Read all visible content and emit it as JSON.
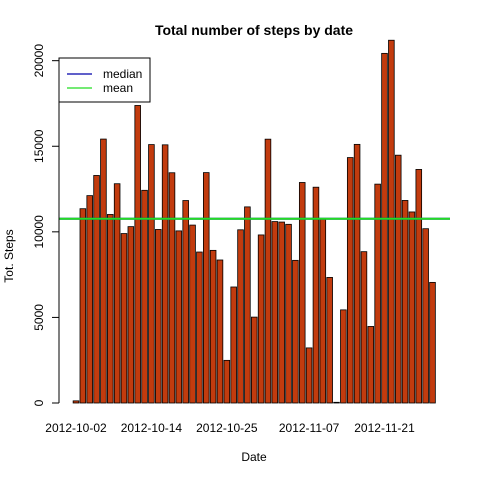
{
  "chart_data": {
    "type": "bar",
    "title": "Total number of steps by date",
    "xlabel": "Date",
    "ylabel": "Tot. Steps",
    "ylim": [
      0,
      21500
    ],
    "yticks": [
      0,
      5000,
      10000,
      15000,
      20000
    ],
    "xtick_labels": [
      "2012-10-02",
      "2012-10-14",
      "2012-10-25",
      "2012-11-07",
      "2012-11-21"
    ],
    "xtick_positions": [
      1,
      12,
      23,
      35,
      46
    ],
    "values": [
      126,
      11352,
      12116,
      13294,
      15420,
      11015,
      12811,
      9900,
      10304,
      17382,
      12426,
      15098,
      10139,
      15084,
      13452,
      10056,
      11829,
      10395,
      8821,
      13460,
      8918,
      8355,
      2492,
      6778,
      10119,
      11458,
      5018,
      9819,
      15414,
      10600,
      10571,
      10439,
      8334,
      12883,
      3219,
      12608,
      10765,
      7336,
      41,
      5441,
      14339,
      15110,
      8841,
      4472,
      12787,
      20427,
      21194,
      14478,
      11834,
      11162,
      13646,
      10183,
      7047
    ],
    "bar_color": "#c23b0e",
    "bar_border": "#000000",
    "lines": [
      {
        "name": "median",
        "value": 10765,
        "color": "#0000aa"
      },
      {
        "name": "mean",
        "value": 10766.19,
        "color": "#22dd22"
      }
    ],
    "legend_position": "top-left"
  }
}
